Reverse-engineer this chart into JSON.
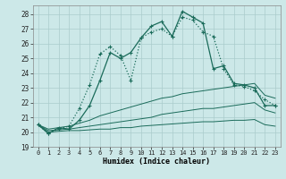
{
  "xlabel": "Humidex (Indice chaleur)",
  "bg_color": "#cce8e8",
  "grid_color": "#aacccc",
  "line_color": "#1a6b5a",
  "xlim": [
    -0.5,
    23.5
  ],
  "ylim": [
    19,
    28.6
  ],
  "yticks": [
    19,
    20,
    21,
    22,
    23,
    24,
    25,
    26,
    27,
    28
  ],
  "xticks": [
    0,
    1,
    2,
    3,
    4,
    5,
    6,
    7,
    8,
    9,
    10,
    11,
    12,
    13,
    14,
    15,
    16,
    17,
    18,
    19,
    20,
    21,
    22,
    23
  ],
  "series1": [
    20.5,
    19.9,
    20.3,
    20.2,
    20.8,
    21.8,
    23.5,
    25.4,
    25.0,
    25.4,
    26.4,
    27.2,
    27.5,
    26.5,
    28.2,
    27.8,
    27.4,
    24.3,
    24.5,
    23.3,
    23.2,
    23.0,
    21.8,
    21.8
  ],
  "series2": [
    20.5,
    19.9,
    20.2,
    20.4,
    21.6,
    23.2,
    25.3,
    25.8,
    25.2,
    23.5,
    26.4,
    26.8,
    27.0,
    26.5,
    27.8,
    27.6,
    26.8,
    26.5,
    24.3,
    23.2,
    23.1,
    22.8,
    22.2,
    21.8
  ],
  "series3": [
    20.5,
    20.2,
    20.3,
    20.4,
    20.6,
    20.8,
    21.1,
    21.3,
    21.5,
    21.7,
    21.9,
    22.1,
    22.3,
    22.4,
    22.6,
    22.7,
    22.8,
    22.9,
    23.0,
    23.1,
    23.2,
    23.3,
    22.5,
    22.3
  ],
  "series4": [
    20.5,
    20.1,
    20.15,
    20.2,
    20.3,
    20.4,
    20.5,
    20.6,
    20.7,
    20.8,
    20.9,
    21.0,
    21.2,
    21.3,
    21.4,
    21.5,
    21.6,
    21.6,
    21.7,
    21.8,
    21.9,
    22.0,
    21.5,
    21.3
  ],
  "series5": [
    20.5,
    20.0,
    20.05,
    20.1,
    20.1,
    20.15,
    20.2,
    20.2,
    20.3,
    20.3,
    20.4,
    20.45,
    20.5,
    20.55,
    20.6,
    20.65,
    20.7,
    20.7,
    20.75,
    20.8,
    20.8,
    20.85,
    20.5,
    20.4
  ]
}
